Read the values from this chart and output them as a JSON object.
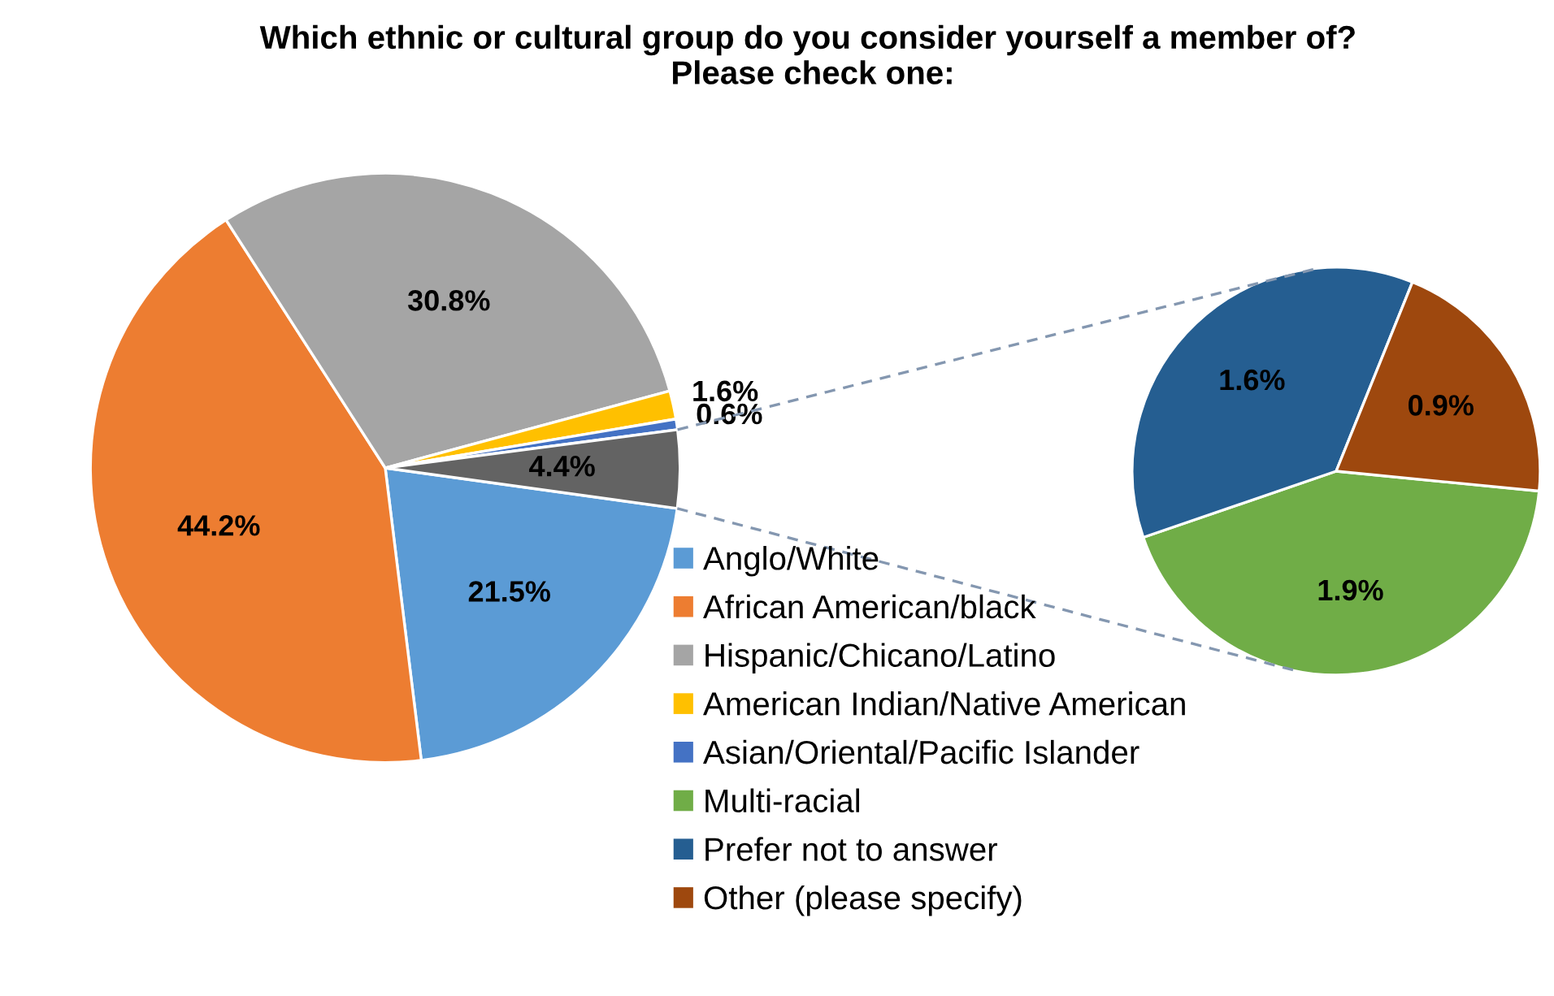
{
  "chart_data": [
    {
      "type": "pie",
      "title": "Which ethnic or cultural group do you consider yourself a member of?  Please check one:",
      "categories": [
        "Anglo/White",
        "African American/black",
        "Hispanic/Chicano/Latino",
        "American Indian/Native American",
        "Asian/Oriental/Pacific Islander",
        null
      ],
      "values": [
        21.5,
        44.2,
        30.8,
        1.6,
        0.6,
        4.4
      ],
      "colors": [
        "#5b9bd5",
        "#ed7d31",
        "#a5a5a5",
        "#ffc000",
        "#4472c4",
        "#636363"
      ],
      "value_labels": [
        "21.5%",
        "44.2%",
        "30.8%",
        "1.6%",
        "0.6%",
        "4.4%"
      ],
      "legend": "right"
    },
    {
      "type": "pie",
      "categories": [
        "Multi-racial",
        "Prefer not to answer",
        "Other (please specify)"
      ],
      "values": [
        1.9,
        1.6,
        0.9
      ],
      "colors": [
        "#70ad47",
        "#255e91",
        "#9e480e"
      ],
      "value_labels": [
        "1.9%",
        "1.6%",
        "0.9%"
      ],
      "legend": "bottom left"
    }
  ]
}
